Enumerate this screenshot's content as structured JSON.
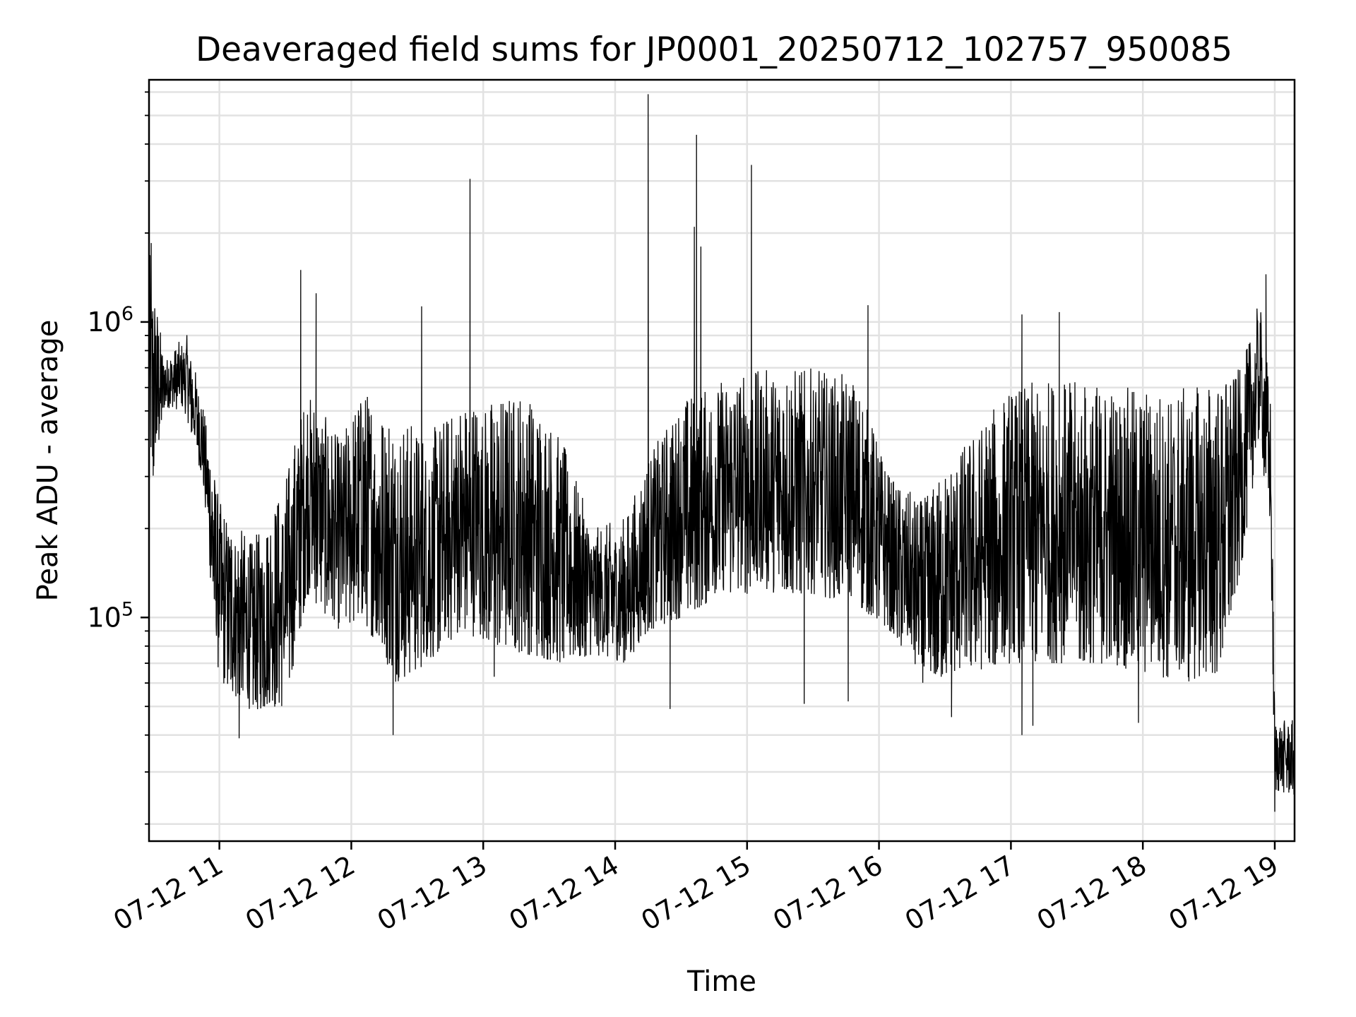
{
  "chart_data": {
    "type": "line",
    "title": "Deaveraged field sums for JP0001_20250712_102757_950085",
    "xlabel": "Time",
    "ylabel": "Peak ADU - average",
    "y_scale": "log",
    "ylim": [
      17500,
      6600000
    ],
    "xlim": [
      "2025-07-12 10:28",
      "2025-07-12 19:09"
    ],
    "grid": true,
    "legend": "none",
    "line_color": "#000000",
    "x_ticks": [
      {
        "t": "2025-07-12 11:00",
        "label": "07-12 11"
      },
      {
        "t": "2025-07-12 12:00",
        "label": "07-12 12"
      },
      {
        "t": "2025-07-12 13:00",
        "label": "07-12 13"
      },
      {
        "t": "2025-07-12 14:00",
        "label": "07-12 14"
      },
      {
        "t": "2025-07-12 15:00",
        "label": "07-12 15"
      },
      {
        "t": "2025-07-12 16:00",
        "label": "07-12 16"
      },
      {
        "t": "2025-07-12 17:00",
        "label": "07-12 17"
      },
      {
        "t": "2025-07-12 18:00",
        "label": "07-12 18"
      },
      {
        "t": "2025-07-12 19:00",
        "label": "07-12 19"
      }
    ],
    "y_major_ticks": [
      {
        "value": 100000,
        "base": "10",
        "exp": "5"
      },
      {
        "value": 1000000,
        "base": "10",
        "exp": "6"
      }
    ],
    "envelope_points": [
      {
        "t": "2025-07-12 10:28",
        "low": 210000,
        "high": 1800000
      },
      {
        "t": "2025-07-12 10:35",
        "low": 520000,
        "high": 750000
      },
      {
        "t": "2025-07-12 10:45",
        "low": 480000,
        "high": 920000
      },
      {
        "t": "2025-07-12 10:52",
        "low": 300000,
        "high": 560000
      },
      {
        "t": "2025-07-12 11:00",
        "low": 60000,
        "high": 250000
      },
      {
        "t": "2025-07-12 11:15",
        "low": 48000,
        "high": 180000
      },
      {
        "t": "2025-07-12 11:30",
        "low": 50000,
        "high": 300000
      },
      {
        "t": "2025-07-12 11:40",
        "low": 120000,
        "high": 600000
      },
      {
        "t": "2025-07-12 11:55",
        "low": 90000,
        "high": 400000
      },
      {
        "t": "2025-07-12 12:05",
        "low": 100000,
        "high": 600000
      },
      {
        "t": "2025-07-12 12:20",
        "low": 60000,
        "high": 500000
      },
      {
        "t": "2025-07-12 12:35",
        "low": 70000,
        "high": 420000
      },
      {
        "t": "2025-07-12 12:50",
        "low": 90000,
        "high": 550000
      },
      {
        "t": "2025-07-12 13:05",
        "low": 80000,
        "high": 550000
      },
      {
        "t": "2025-07-12 13:20",
        "low": 75000,
        "high": 600000
      },
      {
        "t": "2025-07-12 13:35",
        "low": 70000,
        "high": 420000
      },
      {
        "t": "2025-07-12 13:50",
        "low": 75000,
        "high": 200000
      },
      {
        "t": "2025-07-12 14:05",
        "low": 70000,
        "high": 220000
      },
      {
        "t": "2025-07-12 14:15",
        "low": 90000,
        "high": 350000
      },
      {
        "t": "2025-07-12 14:30",
        "low": 100000,
        "high": 550000
      },
      {
        "t": "2025-07-12 14:50",
        "low": 120000,
        "high": 650000
      },
      {
        "t": "2025-07-12 15:10",
        "low": 120000,
        "high": 700000
      },
      {
        "t": "2025-07-12 15:30",
        "low": 120000,
        "high": 700000
      },
      {
        "t": "2025-07-12 15:50",
        "low": 110000,
        "high": 650000
      },
      {
        "t": "2025-07-12 16:05",
        "low": 90000,
        "high": 300000
      },
      {
        "t": "2025-07-12 16:20",
        "low": 60000,
        "high": 250000
      },
      {
        "t": "2025-07-12 16:40",
        "low": 65000,
        "high": 400000
      },
      {
        "t": "2025-07-12 17:00",
        "low": 70000,
        "high": 600000
      },
      {
        "t": "2025-07-12 17:20",
        "low": 70000,
        "high": 650000
      },
      {
        "t": "2025-07-12 17:40",
        "low": 70000,
        "high": 620000
      },
      {
        "t": "2025-07-12 18:00",
        "low": 65000,
        "high": 600000
      },
      {
        "t": "2025-07-12 18:20",
        "low": 60000,
        "high": 600000
      },
      {
        "t": "2025-07-12 18:35",
        "low": 65000,
        "high": 650000
      },
      {
        "t": "2025-07-12 18:45",
        "low": 150000,
        "high": 700000
      },
      {
        "t": "2025-07-12 18:53",
        "low": 400000,
        "high": 1200000
      },
      {
        "t": "2025-07-12 18:58",
        "low": 200000,
        "high": 600000
      },
      {
        "t": "2025-07-12 19:00",
        "low": 26000,
        "high": 45000
      },
      {
        "t": "2025-07-12 19:09",
        "low": 25000,
        "high": 45000
      }
    ],
    "spikes": [
      {
        "t": "2025-07-12 10:29",
        "value": 1850000
      },
      {
        "t": "2025-07-12 11:37",
        "value": 1500000
      },
      {
        "t": "2025-07-12 11:44",
        "value": 1250000
      },
      {
        "t": "2025-07-12 12:32",
        "value": 1130000
      },
      {
        "t": "2025-07-12 12:54",
        "value": 3050000
      },
      {
        "t": "2025-07-12 14:15",
        "value": 5900000
      },
      {
        "t": "2025-07-12 14:36",
        "value": 2100000
      },
      {
        "t": "2025-07-12 14:37",
        "value": 4300000
      },
      {
        "t": "2025-07-12 15:02",
        "value": 3400000
      },
      {
        "t": "2025-07-12 14:39",
        "value": 1800000
      },
      {
        "t": "2025-07-12 15:55",
        "value": 1140000
      },
      {
        "t": "2025-07-12 17:05",
        "value": 1060000
      },
      {
        "t": "2025-07-12 17:22",
        "value": 1080000
      },
      {
        "t": "2025-07-12 18:56",
        "value": 1450000
      }
    ],
    "dips": [
      {
        "t": "2025-07-12 11:09",
        "value": 39000
      },
      {
        "t": "2025-07-12 12:19",
        "value": 40000
      },
      {
        "t": "2025-07-12 13:05",
        "value": 63000
      },
      {
        "t": "2025-07-12 14:25",
        "value": 49000
      },
      {
        "t": "2025-07-12 15:26",
        "value": 51000
      },
      {
        "t": "2025-07-12 15:46",
        "value": 52000
      },
      {
        "t": "2025-07-12 16:33",
        "value": 46000
      },
      {
        "t": "2025-07-12 17:05",
        "value": 40000
      },
      {
        "t": "2025-07-12 17:10",
        "value": 43000
      },
      {
        "t": "2025-07-12 17:58",
        "value": 44000
      },
      {
        "t": "2025-07-12 19:00",
        "value": 22000
      }
    ]
  }
}
